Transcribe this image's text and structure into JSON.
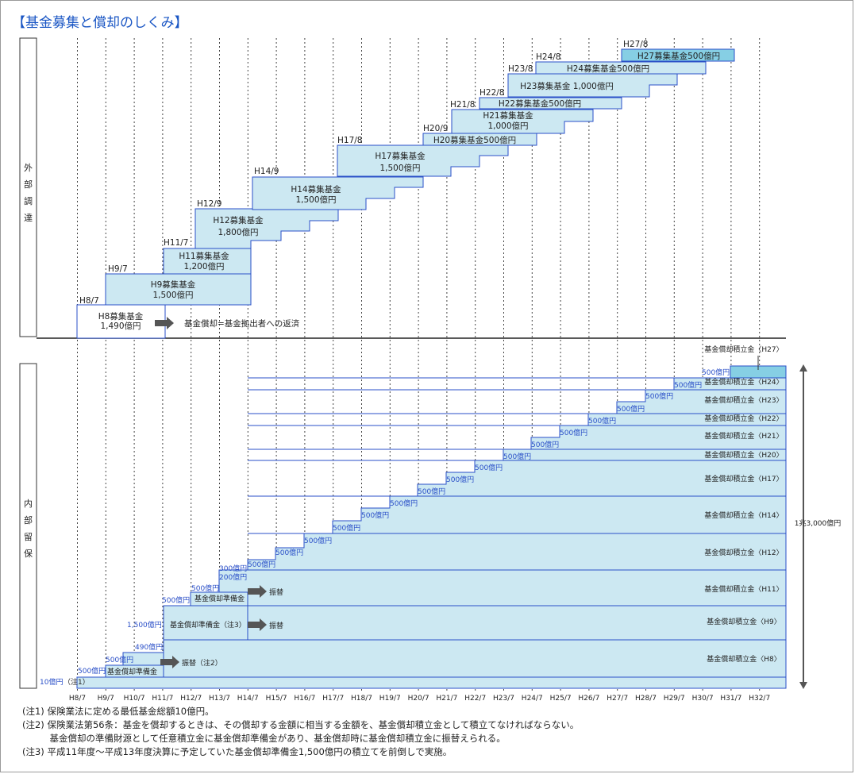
{
  "title": "【基金募集と償却のしくみ】",
  "sections": {
    "external": "外部調達",
    "internal": "内部留保"
  },
  "x_axis": [
    "H8/7",
    "H9/7",
    "H10/7",
    "H11/7",
    "H12/7",
    "H13/7",
    "H14/7",
    "H15/7",
    "H16/7",
    "H17/7",
    "H18/7",
    "H19/7",
    "H20/7",
    "H21/7",
    "H22/7",
    "H23/7",
    "H24/7",
    "H25/7",
    "H26/7",
    "H27/7",
    "H28/7",
    "H29/7",
    "H30/7",
    "H31/7",
    "H32/7"
  ],
  "funds": [
    {
      "date": "H8/7",
      "line1": "H8募集基金",
      "line2": "1,490億円"
    },
    {
      "date": "H9/7",
      "line1": "H9募集基金",
      "line2": "1,500億円"
    },
    {
      "date": "H11/7",
      "line1": "H11募集基金",
      "line2": "1,200億円"
    },
    {
      "date": "H12/9",
      "line1": "H12募集基金",
      "line2": "1,800億円"
    },
    {
      "date": "H14/9",
      "line1": "H14募集基金",
      "line2": "1,500億円"
    },
    {
      "date": "H17/8",
      "line1": "H17募集基金",
      "line2": "1,500億円"
    },
    {
      "date": "H20/9",
      "line1": "H20募集基金500億円",
      "line2": ""
    },
    {
      "date": "H21/8",
      "line1": "H21募集基金",
      "line2": "1,000億円"
    },
    {
      "date": "H22/8",
      "line1": "H22募集基金500億円",
      "line2": ""
    },
    {
      "date": "H23/8",
      "line1": "H23募集基金 1,000億円",
      "line2": ""
    },
    {
      "date": "H24/8",
      "line1": "H24募集基金500億円",
      "line2": ""
    },
    {
      "date": "H27/8",
      "line1": "H27募集基金500億円",
      "line2": ""
    }
  ],
  "redemption_label": "基金償却=基金拠出者への返済",
  "reserve_labels": [
    "基金償却積立金〈H8〉",
    "基金償却積立金〈H9〉",
    "基金償却積立金〈H11〉",
    "基金償却積立金〈H12〉",
    "基金償却積立金〈H14〉",
    "基金償却積立金〈H17〉",
    "基金償却積立金〈H20〉",
    "基金償却積立金〈H21〉",
    "基金償却積立金〈H22〉",
    "基金償却積立金〈H23〉",
    "基金償却積立金〈H24〉",
    "基金償却積立金〈H27〉"
  ],
  "step_amounts": {
    "a10": "10億円",
    "a500": "500億円",
    "a490": "490億円",
    "a1500": "1,500億円",
    "a300": "300億円",
    "a200": "200億円"
  },
  "prep_labels": {
    "base": "基金償却準備金",
    "h9": "基金償却準備金（注3）",
    "h11": "基金償却準備金"
  },
  "transfer_labels": {
    "t1": "振替（注2）",
    "t2": "振替",
    "t3": "振替"
  },
  "note1_tag": "（注1）",
  "total": "1兆3,000億円",
  "notes": [
    "(注1) 保険業法に定める最低基金総額10億円。",
    "(注2) 保険業法第56条：基金を償却するときは、その償却する金額に相当する金額を、基金償却積立金として積立てなければならない。",
    "　　　基金償却の準備財源として任意積立金に基金償却準備金があり、基金償却時に基金償却積立金に振替えられる。",
    "(注3) 平成11年度〜平成13年度決算に予定していた基金償却準備金1,500億円の積立てを前倒しで実施。"
  ],
  "colors": {
    "fill": "#cce8f2",
    "fill_dark": "#86cfe4",
    "border": "#2a4fc8",
    "title": "#1a56c4"
  }
}
